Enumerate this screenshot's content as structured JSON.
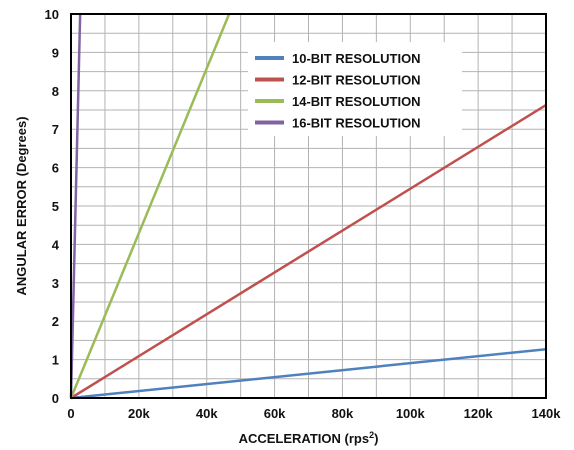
{
  "chart_data": {
    "type": "line",
    "xlabel": "ACCELERATION (rps",
    "xlabel_sup": "2",
    "xlabel_end": ")",
    "ylabel": "ANGULAR ERROR  (Degrees)",
    "xlim": [
      0,
      140000
    ],
    "ylim": [
      0,
      10
    ],
    "grid": true,
    "legend_position": "top-right",
    "xticks": [
      0,
      20000,
      40000,
      60000,
      80000,
      100000,
      120000,
      140000
    ],
    "xtick_labels": [
      "0",
      "20k",
      "40k",
      "60k",
      "80k",
      "100k",
      "120k",
      "140k"
    ],
    "yticks": [
      0,
      1,
      2,
      3,
      4,
      5,
      6,
      7,
      8,
      9,
      10
    ],
    "ytick_labels": [
      "0",
      "1",
      "2",
      "3",
      "4",
      "5",
      "6",
      "7",
      "8",
      "9",
      "10"
    ],
    "series": [
      {
        "name": "10-BIT RESOLUTION",
        "color": "#4f81bd",
        "x": [
          0,
          140000
        ],
        "y": [
          0,
          1.27
        ]
      },
      {
        "name": "12-BIT RESOLUTION",
        "color": "#c0504d",
        "x": [
          0,
          140000
        ],
        "y": [
          0,
          7.63
        ]
      },
      {
        "name": "14-BIT RESOLUTION",
        "color": "#9bbb59",
        "x": [
          0,
          46600
        ],
        "y": [
          0,
          10
        ]
      },
      {
        "name": "16-BIT RESOLUTION",
        "color": "#8064a2",
        "x": [
          0,
          2700
        ],
        "y": [
          0,
          10
        ]
      }
    ]
  }
}
